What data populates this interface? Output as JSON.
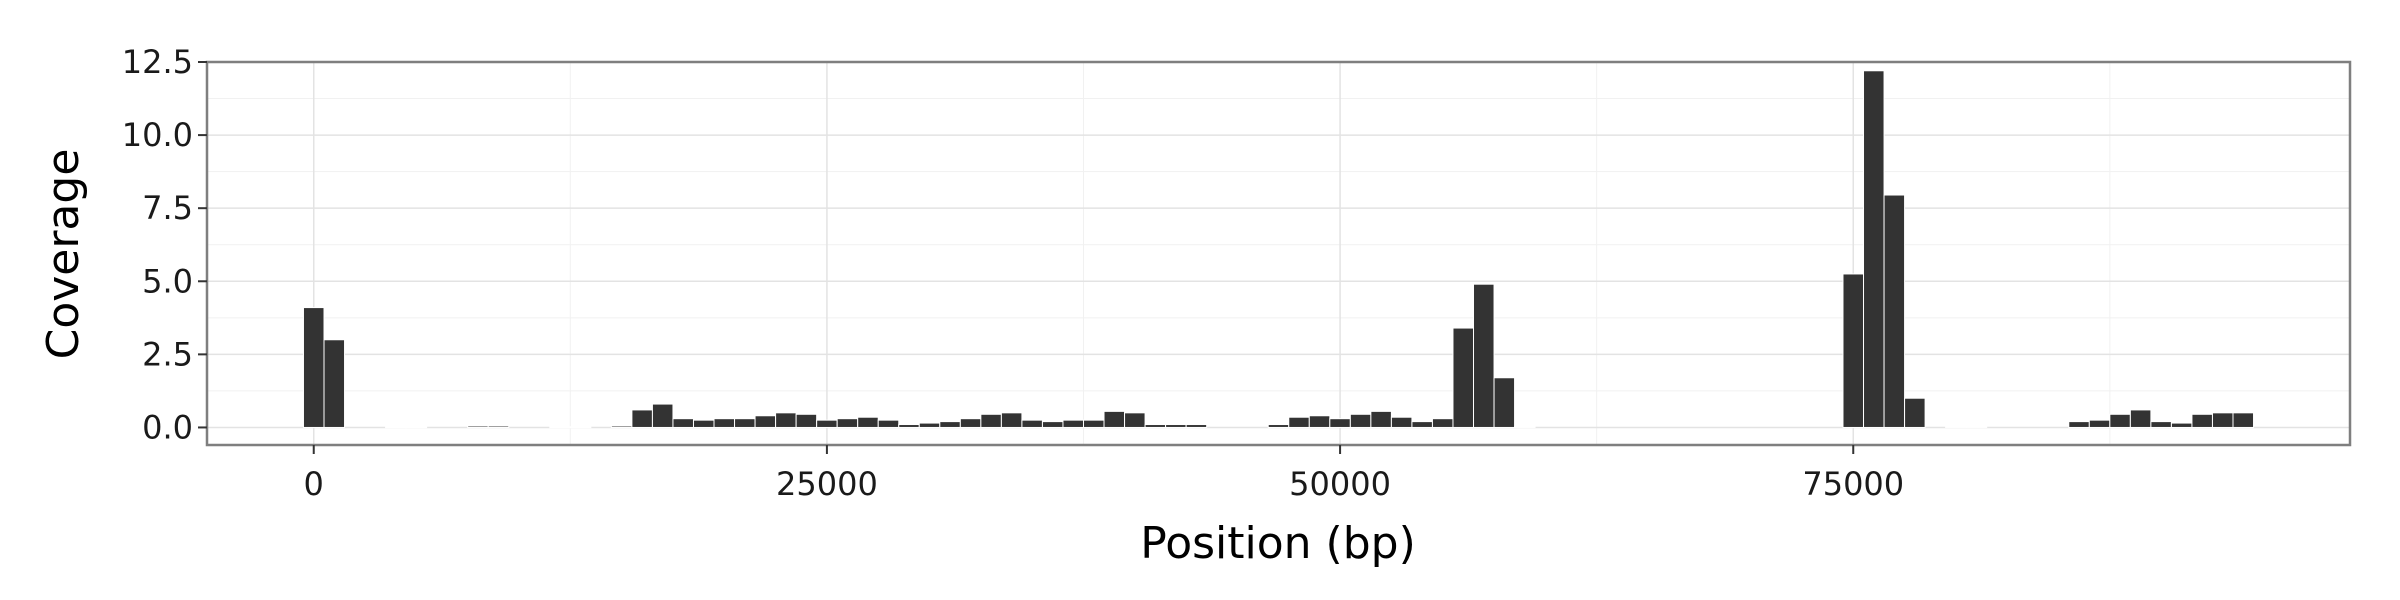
{
  "chart_data": {
    "type": "bar",
    "xlabel": "Position (bp)",
    "ylabel": "Coverage",
    "xlim": [
      -5200,
      99200
    ],
    "ylim": [
      -0.6,
      12.5
    ],
    "grid": true,
    "x_ticks": [
      0,
      25000,
      50000,
      75000
    ],
    "x_tick_labels": [
      "0",
      "25000",
      "50000",
      "75000"
    ],
    "y_ticks": [
      0,
      2.5,
      5,
      7.5,
      10,
      12.5
    ],
    "y_tick_labels": [
      "0.0",
      "2.5",
      "5.0",
      "7.5",
      "10.0",
      "12.5"
    ],
    "bin_width": 1000,
    "bins": [
      {
        "x": 0,
        "y": 4.1
      },
      {
        "x": 1000,
        "y": 3.0
      },
      {
        "x": 4000,
        "y": 0.02
      },
      {
        "x": 5000,
        "y": 0.02
      },
      {
        "x": 8000,
        "y": 0.05
      },
      {
        "x": 9000,
        "y": 0.05
      },
      {
        "x": 12000,
        "y": 0.02
      },
      {
        "x": 13000,
        "y": 0.02
      },
      {
        "x": 15000,
        "y": 0.05
      },
      {
        "x": 16000,
        "y": 0.6
      },
      {
        "x": 17000,
        "y": 0.8
      },
      {
        "x": 18000,
        "y": 0.3
      },
      {
        "x": 19000,
        "y": 0.25
      },
      {
        "x": 20000,
        "y": 0.3
      },
      {
        "x": 21000,
        "y": 0.3
      },
      {
        "x": 22000,
        "y": 0.4
      },
      {
        "x": 23000,
        "y": 0.5
      },
      {
        "x": 24000,
        "y": 0.45
      },
      {
        "x": 25000,
        "y": 0.25
      },
      {
        "x": 26000,
        "y": 0.3
      },
      {
        "x": 27000,
        "y": 0.35
      },
      {
        "x": 28000,
        "y": 0.25
      },
      {
        "x": 29000,
        "y": 0.1
      },
      {
        "x": 30000,
        "y": 0.15
      },
      {
        "x": 31000,
        "y": 0.2
      },
      {
        "x": 32000,
        "y": 0.3
      },
      {
        "x": 33000,
        "y": 0.45
      },
      {
        "x": 34000,
        "y": 0.5
      },
      {
        "x": 35000,
        "y": 0.25
      },
      {
        "x": 36000,
        "y": 0.2
      },
      {
        "x": 37000,
        "y": 0.25
      },
      {
        "x": 38000,
        "y": 0.25
      },
      {
        "x": 39000,
        "y": 0.55
      },
      {
        "x": 40000,
        "y": 0.5
      },
      {
        "x": 41000,
        "y": 0.1
      },
      {
        "x": 42000,
        "y": 0.1
      },
      {
        "x": 43000,
        "y": 0.1
      },
      {
        "x": 47000,
        "y": 0.1
      },
      {
        "x": 48000,
        "y": 0.35
      },
      {
        "x": 49000,
        "y": 0.4
      },
      {
        "x": 50000,
        "y": 0.3
      },
      {
        "x": 51000,
        "y": 0.45
      },
      {
        "x": 52000,
        "y": 0.55
      },
      {
        "x": 53000,
        "y": 0.35
      },
      {
        "x": 54000,
        "y": 0.2
      },
      {
        "x": 55000,
        "y": 0.3
      },
      {
        "x": 56000,
        "y": 3.4
      },
      {
        "x": 57000,
        "y": 4.9
      },
      {
        "x": 58000,
        "y": 1.7
      },
      {
        "x": 59000,
        "y": 0.03
      },
      {
        "x": 75000,
        "y": 5.25
      },
      {
        "x": 76000,
        "y": 12.2
      },
      {
        "x": 77000,
        "y": 7.95
      },
      {
        "x": 78000,
        "y": 1.0
      },
      {
        "x": 80000,
        "y": 0.03
      },
      {
        "x": 81000,
        "y": 0.03
      },
      {
        "x": 86000,
        "y": 0.2
      },
      {
        "x": 87000,
        "y": 0.25
      },
      {
        "x": 88000,
        "y": 0.45
      },
      {
        "x": 89000,
        "y": 0.6
      },
      {
        "x": 90000,
        "y": 0.2
      },
      {
        "x": 91000,
        "y": 0.15
      },
      {
        "x": 92000,
        "y": 0.45
      },
      {
        "x": 93000,
        "y": 0.5
      },
      {
        "x": 94000,
        "y": 0.5
      }
    ]
  }
}
